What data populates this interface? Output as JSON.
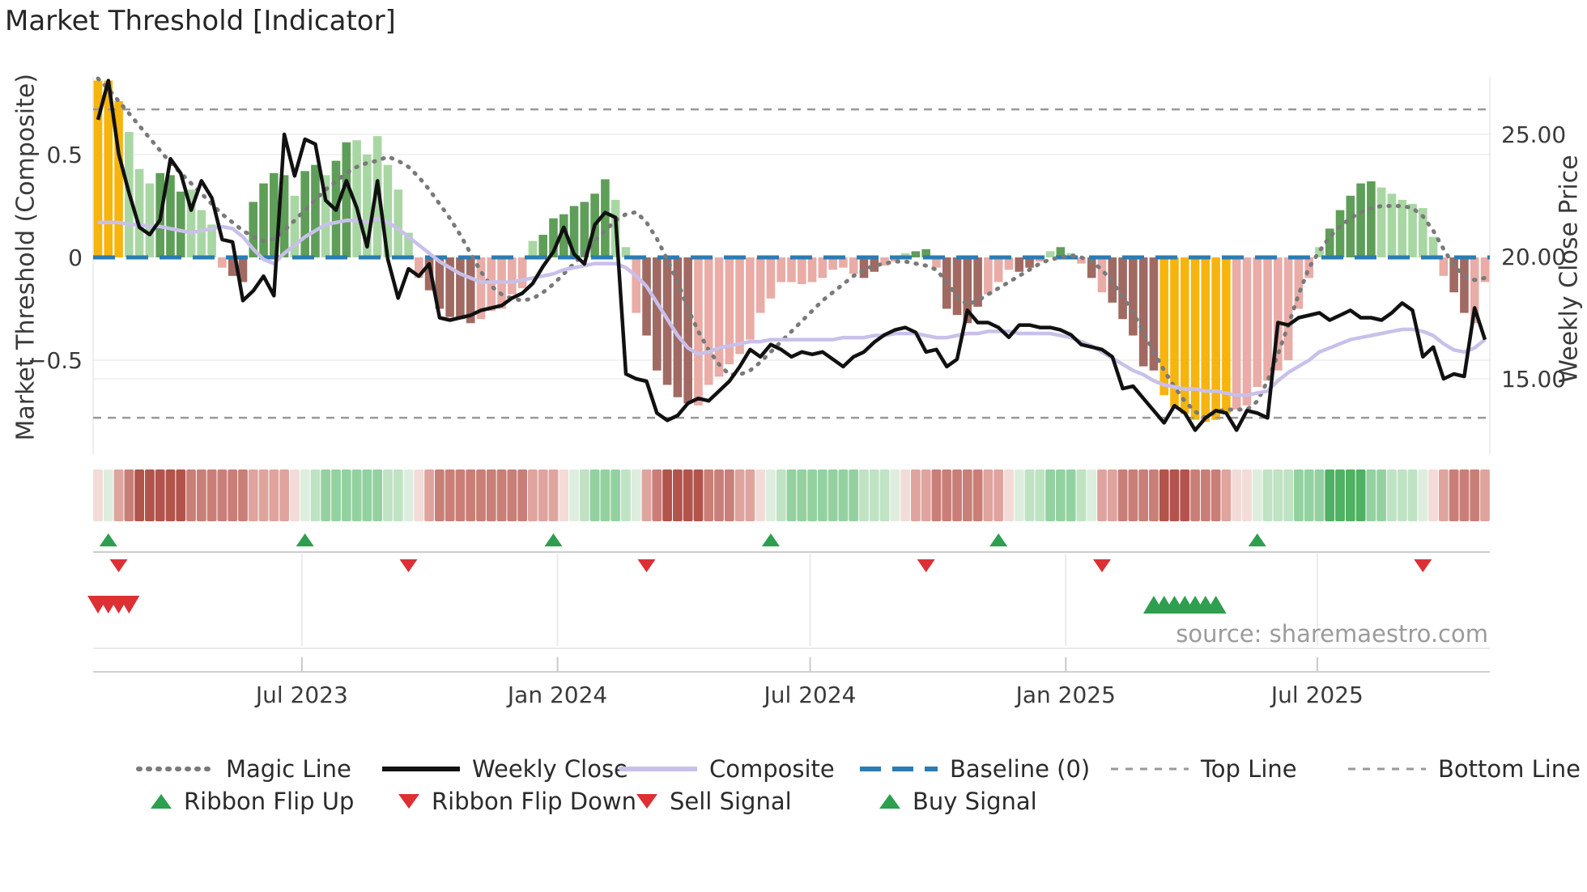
{
  "title": "Market Threshold [Indicator]",
  "source": "source: sharemaestro.com",
  "axes": {
    "left_label": "Market Threshold (Composite)",
    "right_label": "Weekly Close Price",
    "left_ticks": [
      {
        "label": "0.5",
        "value": 0.5
      },
      {
        "label": "0",
        "value": 0
      },
      {
        "label": "−0.5",
        "value": -0.5
      }
    ],
    "right_ticks": [
      {
        "label": "25.00",
        "price": 25
      },
      {
        "label": "20.00",
        "price": 20
      },
      {
        "label": "15.00",
        "price": 15
      }
    ],
    "x_ticks": [
      {
        "label": "Jul 2023",
        "week": 19.7
      },
      {
        "label": "Jan 2024",
        "week": 44.4
      },
      {
        "label": "Jul 2024",
        "week": 68.8
      },
      {
        "label": "Jan 2025",
        "week": 93.5
      },
      {
        "label": "Jul 2025",
        "week": 117.8
      }
    ]
  },
  "colors": {
    "gold": "#f6b40e",
    "bar_light_green": "#a9d7a4",
    "bar_dark_green": "#5f9e59",
    "bar_light_red": "#e9aca6",
    "bar_dark_red": "#a06a62",
    "weekly_close": "#111111",
    "composite": "#c9c0ea",
    "magic": "#7a7a7a",
    "baseline": "#2b7cb3",
    "top_bottom": "#999999",
    "flip_up": "#2e9e4f",
    "flip_down": "#dc3035",
    "ribbon": {
      "pr": "#f3dbd8",
      "r1": "#dfa49e",
      "r2": "#c97f77",
      "r3": "#b2544b",
      "pg": "#ddeede",
      "g1": "#bfe3c3",
      "g2": "#93d2a0",
      "g3": "#4fb163"
    }
  },
  "legend": {
    "row1": [
      {
        "id": "magic",
        "label": "Magic Line"
      },
      {
        "id": "weekly",
        "label": "Weekly Close"
      },
      {
        "id": "composite",
        "label": "Composite"
      },
      {
        "id": "baseline",
        "label": "Baseline (0)"
      },
      {
        "id": "topline",
        "label": "Top Line"
      },
      {
        "id": "bottomline",
        "label": "Bottom Line"
      }
    ],
    "row2": [
      {
        "id": "flipup",
        "label": "Ribbon Flip Up"
      },
      {
        "id": "flipdown",
        "label": "Ribbon Flip Down"
      },
      {
        "id": "sell",
        "label": "Sell Signal"
      },
      {
        "id": "buy",
        "label": "Buy Signal"
      }
    ]
  },
  "chart_data": {
    "type": "bar",
    "x_unit": "weeks (Mar 2023 - Oct 2025)",
    "title": "Market Threshold [Indicator]",
    "ylabel_left": "Market Threshold (Composite)",
    "ylabel_right": "Weekly Close Price",
    "ylim_left": [
      -0.88,
      0.88
    ],
    "ylim_right": [
      12.0,
      27.4
    ],
    "baseline": 0,
    "top_line": 0.72,
    "bottom_line": -0.78,
    "grid": "horizontal, light",
    "legend_position": "below, two rows",
    "bars": {
      "name": "Market Threshold (Composite) histogram",
      "values": [
        0.86,
        0.86,
        0.76,
        0.61,
        0.43,
        0.36,
        0.41,
        0.4,
        0.32,
        0.33,
        0.23,
        0.16,
        -0.05,
        -0.09,
        -0.12,
        0.27,
        0.36,
        0.41,
        0.4,
        0.3,
        0.42,
        0.45,
        0.4,
        0.47,
        0.56,
        0.57,
        0.5,
        0.59,
        0.45,
        0.33,
        0.12,
        -0.1,
        -0.16,
        -0.25,
        -0.29,
        -0.3,
        -0.32,
        -0.3,
        -0.26,
        -0.25,
        -0.18,
        -0.15,
        0.08,
        0.11,
        0.19,
        0.21,
        0.25,
        0.27,
        0.31,
        0.38,
        0.28,
        0.05,
        -0.27,
        -0.38,
        -0.55,
        -0.62,
        -0.68,
        -0.71,
        -0.72,
        -0.62,
        -0.58,
        -0.52,
        -0.47,
        -0.4,
        -0.27,
        -0.2,
        -0.12,
        -0.12,
        -0.13,
        -0.12,
        -0.1,
        -0.06,
        -0.05,
        -0.08,
        -0.1,
        -0.07,
        -0.04,
        -0.02,
        0.02,
        0.03,
        0.04,
        -0.05,
        -0.25,
        -0.28,
        -0.32,
        -0.24,
        -0.18,
        -0.12,
        -0.06,
        -0.07,
        -0.05,
        -0.02,
        0.03,
        0.05,
        0.02,
        -0.03,
        -0.1,
        -0.17,
        -0.22,
        -0.3,
        -0.38,
        -0.53,
        -0.55,
        -0.67,
        -0.73,
        -0.76,
        -0.79,
        -0.8,
        -0.79,
        -0.76,
        -0.74,
        -0.72,
        -0.63,
        -0.6,
        -0.55,
        -0.5,
        -0.25,
        -0.1,
        0.05,
        0.14,
        0.23,
        0.3,
        0.36,
        0.37,
        0.34,
        0.31,
        0.28,
        0.26,
        0.24,
        0.1,
        -0.09,
        -0.17,
        -0.27,
        -0.32,
        -0.12
      ],
      "color_classes": [
        "au",
        "au",
        "au",
        "lg",
        "lg",
        "lg",
        "dg",
        "dg",
        "dg",
        "lg",
        "lg",
        "lg",
        "lr",
        "dr",
        "dr",
        "dg",
        "dg",
        "dg",
        "dg",
        "lg",
        "dg",
        "dg",
        "lg",
        "dg",
        "dg",
        "lg",
        "lg",
        "lg",
        "lg",
        "lg",
        "lg",
        "lr",
        "dr",
        "dr",
        "dr",
        "dr",
        "dr",
        "lr",
        "lr",
        "lr",
        "lr",
        "lr",
        "lg",
        "dg",
        "dg",
        "dg",
        "dg",
        "dg",
        "dg",
        "dg",
        "lg",
        "lg",
        "lr",
        "dr",
        "dr",
        "dr",
        "dr",
        "dr",
        "lr",
        "lr",
        "lr",
        "lr",
        "lr",
        "lr",
        "lr",
        "lr",
        "lr",
        "lr",
        "lr",
        "lr",
        "lr",
        "lr",
        "lr",
        "lr",
        "dr",
        "dr",
        "lr",
        "lr",
        "lg",
        "dg",
        "dg",
        "lr",
        "dr",
        "dr",
        "dr",
        "dr",
        "lr",
        "lr",
        "lr",
        "dr",
        "dr",
        "lr",
        "lg",
        "dg",
        "lg",
        "lr",
        "dr",
        "lr",
        "dr",
        "dr",
        "dr",
        "dr",
        "dr",
        "au",
        "au",
        "au",
        "au",
        "au",
        "au",
        "au",
        "lr",
        "lr",
        "lr",
        "lr",
        "lr",
        "lr",
        "lr",
        "lr",
        "lg",
        "dg",
        "dg",
        "dg",
        "dg",
        "dg",
        "lg",
        "lg",
        "lg",
        "lg",
        "lg",
        "lg",
        "lr",
        "dr",
        "dr",
        "lr",
        "lr"
      ],
      "color_legend": {
        "au": "gold threshold zone",
        "lg": "light green",
        "dg": "dark green",
        "lr": "light red",
        "dr": "dark red"
      }
    },
    "ribbon": [
      "pr",
      "pg",
      "r1",
      "r2",
      "r3",
      "r3",
      "r3",
      "r3",
      "r3",
      "r2",
      "r2",
      "r2",
      "r2",
      "r2",
      "r2",
      "r1",
      "r1",
      "r1",
      "r1",
      "pr",
      "pg",
      "g1",
      "g2",
      "g2",
      "g2",
      "g2",
      "g2",
      "g2",
      "g1",
      "g1",
      "pg",
      "pr",
      "r1",
      "r2",
      "r2",
      "r2",
      "r2",
      "r2",
      "r2",
      "r2",
      "r2",
      "r2",
      "r1",
      "r1",
      "r1",
      "pr",
      "pg",
      "g1",
      "g2",
      "g2",
      "g2",
      "g1",
      "pg",
      "r1",
      "r2",
      "r3",
      "r3",
      "r3",
      "r3",
      "r2",
      "r2",
      "r2",
      "r1",
      "r1",
      "pr",
      "pg",
      "g1",
      "g2",
      "g2",
      "g2",
      "g2",
      "g2",
      "g2",
      "g2",
      "g1",
      "g1",
      "g1",
      "pg",
      "pr",
      "r1",
      "r1",
      "r2",
      "r2",
      "r2",
      "r2",
      "r2",
      "r1",
      "r1",
      "pr",
      "pg",
      "g1",
      "g1",
      "g2",
      "g2",
      "g2",
      "g1",
      "pg",
      "r1",
      "r1",
      "r2",
      "r2",
      "r2",
      "r2",
      "r3",
      "r3",
      "r3",
      "r2",
      "r2",
      "r2",
      "r1",
      "pr",
      "pr",
      "pg",
      "g1",
      "g1",
      "g1",
      "g2",
      "g2",
      "g2",
      "g3",
      "g3",
      "g3",
      "g3",
      "g2",
      "g2",
      "g1",
      "g1",
      "g1",
      "pg",
      "pr",
      "r1",
      "r2",
      "r2",
      "r2",
      "r1"
    ],
    "series": [
      {
        "name": "Weekly Close",
        "axis": "right",
        "values": [
          25.6,
          27.2,
          24.2,
          22.6,
          21.2,
          20.9,
          21.5,
          24.0,
          23.4,
          21.9,
          23.1,
          22.4,
          20.7,
          20.6,
          18.2,
          18.6,
          19.2,
          18.4,
          25.0,
          23.3,
          24.8,
          24.6,
          22.3,
          21.9,
          23.1,
          22.0,
          20.4,
          23.1,
          19.9,
          18.3,
          19.5,
          19.2,
          19.7,
          17.5,
          17.4,
          17.5,
          17.6,
          17.8,
          17.9,
          18.0,
          18.3,
          18.5,
          18.9,
          19.6,
          20.2,
          21.2,
          20.1,
          19.7,
          21.3,
          21.8,
          21.6,
          15.2,
          15.0,
          14.9,
          13.6,
          13.3,
          13.5,
          14.0,
          14.2,
          14.1,
          14.5,
          14.9,
          15.5,
          16.2,
          15.9,
          16.4,
          16.2,
          15.9,
          16.1,
          16.0,
          16.1,
          15.8,
          15.5,
          15.9,
          16.1,
          16.5,
          16.8,
          17.0,
          17.1,
          16.9,
          16.1,
          16.2,
          15.5,
          15.8,
          17.8,
          17.3,
          17.3,
          17.1,
          16.7,
          17.2,
          17.2,
          17.1,
          17.1,
          17.0,
          16.8,
          16.4,
          16.3,
          16.2,
          15.9,
          14.6,
          14.7,
          14.2,
          13.7,
          13.2,
          13.9,
          13.6,
          12.9,
          13.4,
          13.7,
          13.6,
          12.9,
          13.7,
          13.6,
          13.4,
          17.3,
          17.2,
          17.5,
          17.6,
          17.7,
          17.4,
          17.6,
          17.8,
          17.5,
          17.5,
          17.4,
          17.7,
          18.1,
          17.8,
          15.9,
          16.3,
          15.0,
          15.2,
          15.1,
          17.9,
          16.6
        ]
      },
      {
        "name": "Composite",
        "axis": "left",
        "values": [
          0.17,
          0.17,
          0.17,
          0.16,
          0.16,
          0.15,
          0.15,
          0.14,
          0.13,
          0.12,
          0.13,
          0.14,
          0.15,
          0.14,
          0.1,
          0.04,
          -0.01,
          -0.03,
          0.02,
          0.06,
          0.1,
          0.13,
          0.16,
          0.17,
          0.18,
          0.18,
          0.17,
          0.19,
          0.17,
          0.14,
          0.1,
          0.06,
          0.02,
          -0.02,
          -0.05,
          -0.08,
          -0.1,
          -0.12,
          -0.12,
          -0.12,
          -0.12,
          -0.11,
          -0.1,
          -0.09,
          -0.08,
          -0.06,
          -0.05,
          -0.04,
          -0.03,
          -0.03,
          -0.03,
          -0.05,
          -0.09,
          -0.14,
          -0.22,
          -0.3,
          -0.38,
          -0.44,
          -0.47,
          -0.46,
          -0.44,
          -0.43,
          -0.42,
          -0.41,
          -0.41,
          -0.4,
          -0.4,
          -0.4,
          -0.4,
          -0.4,
          -0.4,
          -0.4,
          -0.39,
          -0.39,
          -0.39,
          -0.38,
          -0.38,
          -0.37,
          -0.37,
          -0.37,
          -0.38,
          -0.39,
          -0.39,
          -0.38,
          -0.37,
          -0.37,
          -0.36,
          -0.36,
          -0.36,
          -0.37,
          -0.37,
          -0.37,
          -0.37,
          -0.38,
          -0.39,
          -0.41,
          -0.43,
          -0.46,
          -0.49,
          -0.52,
          -0.55,
          -0.57,
          -0.6,
          -0.62,
          -0.63,
          -0.64,
          -0.64,
          -0.65,
          -0.65,
          -0.66,
          -0.67,
          -0.67,
          -0.66,
          -0.65,
          -0.6,
          -0.56,
          -0.53,
          -0.5,
          -0.46,
          -0.44,
          -0.42,
          -0.4,
          -0.39,
          -0.38,
          -0.37,
          -0.36,
          -0.35,
          -0.35,
          -0.36,
          -0.38,
          -0.42,
          -0.45,
          -0.46,
          -0.44,
          -0.4
        ]
      },
      {
        "name": "Magic Line",
        "axis": "left",
        "values": [
          0.87,
          0.82,
          0.76,
          0.7,
          0.64,
          0.58,
          0.52,
          0.46,
          0.41,
          0.36,
          0.31,
          0.26,
          0.21,
          0.17,
          0.13,
          0.1,
          0.08,
          0.09,
          0.13,
          0.18,
          0.23,
          0.28,
          0.33,
          0.37,
          0.41,
          0.44,
          0.46,
          0.47,
          0.49,
          0.47,
          0.44,
          0.39,
          0.33,
          0.26,
          0.19,
          0.11,
          0.02,
          -0.07,
          -0.14,
          -0.18,
          -0.2,
          -0.21,
          -0.2,
          -0.17,
          -0.13,
          -0.08,
          -0.03,
          0.02,
          0.08,
          0.13,
          0.18,
          0.21,
          0.22,
          0.17,
          0.09,
          -0.01,
          -0.12,
          -0.25,
          -0.36,
          -0.45,
          -0.52,
          -0.57,
          -0.57,
          -0.55,
          -0.51,
          -0.46,
          -0.41,
          -0.36,
          -0.31,
          -0.26,
          -0.21,
          -0.17,
          -0.13,
          -0.09,
          -0.06,
          -0.04,
          -0.03,
          -0.02,
          -0.02,
          -0.03,
          -0.04,
          -0.06,
          -0.12,
          -0.19,
          -0.23,
          -0.21,
          -0.18,
          -0.15,
          -0.12,
          -0.09,
          -0.06,
          -0.03,
          -0.01,
          0.0,
          0.01,
          0.0,
          -0.02,
          -0.06,
          -0.12,
          -0.19,
          -0.27,
          -0.36,
          -0.46,
          -0.55,
          -0.63,
          -0.7,
          -0.75,
          -0.78,
          -0.75,
          -0.74,
          -0.74,
          -0.74,
          -0.7,
          -0.6,
          -0.47,
          -0.33,
          -0.18,
          -0.05,
          0.03,
          0.1,
          0.15,
          0.19,
          0.22,
          0.24,
          0.25,
          0.25,
          0.25,
          0.24,
          0.2,
          0.13,
          0.04,
          -0.04,
          -0.09,
          -0.11,
          -0.1
        ]
      }
    ],
    "signals": {
      "ribbon_flip_up_weeks": [
        1,
        20,
        44,
        65,
        87,
        112
      ],
      "ribbon_flip_down_weeks": [
        2,
        30,
        53,
        80,
        97,
        128
      ],
      "sell_signal_weeks": [
        0,
        1,
        2,
        3
      ],
      "buy_signal_weeks": [
        102,
        103,
        104,
        105,
        106,
        107,
        108
      ]
    }
  }
}
